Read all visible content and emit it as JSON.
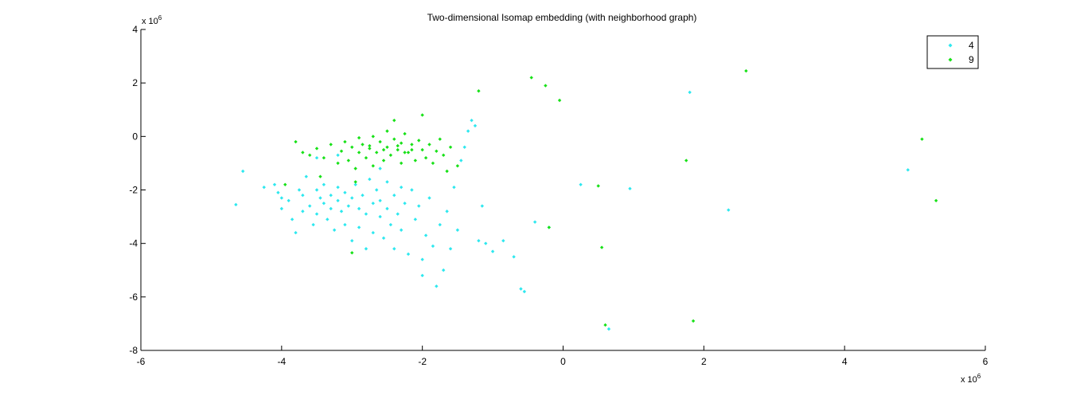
{
  "chart_data": {
    "type": "scatter",
    "title": "Two-dimensional Isomap embedding (with neighborhood graph)",
    "xlabel": "",
    "ylabel": "",
    "x_scale_label": "x 10",
    "x_scale_exponent": "6",
    "y_scale_label": "x 10",
    "y_scale_exponent": "6",
    "xlim": [
      -6,
      6
    ],
    "ylim": [
      -8,
      4
    ],
    "xticks": [
      -6,
      -4,
      -2,
      0,
      2,
      4,
      6
    ],
    "yticks": [
      -8,
      -6,
      -4,
      -2,
      0,
      2,
      4
    ],
    "grid": false,
    "legend_position": "top-right",
    "series": [
      {
        "name": "4",
        "color": "#2ee8ef",
        "points": [
          [
            -4.65,
            -2.55
          ],
          [
            -4.55,
            -1.3
          ],
          [
            -4.25,
            -1.9
          ],
          [
            -4.1,
            -1.8
          ],
          [
            -4.05,
            -2.1
          ],
          [
            -4.0,
            -2.3
          ],
          [
            -4.0,
            -2.7
          ],
          [
            -3.9,
            -2.4
          ],
          [
            -3.85,
            -3.1
          ],
          [
            -3.8,
            -3.6
          ],
          [
            -3.75,
            -2.0
          ],
          [
            -3.7,
            -2.8
          ],
          [
            -3.7,
            -2.2
          ],
          [
            -3.65,
            -1.5
          ],
          [
            -3.6,
            -2.6
          ],
          [
            -3.55,
            -3.3
          ],
          [
            -3.5,
            -2.0
          ],
          [
            -3.5,
            -2.9
          ],
          [
            -3.45,
            -2.3
          ],
          [
            -3.4,
            -1.8
          ],
          [
            -3.4,
            -2.5
          ],
          [
            -3.35,
            -3.1
          ],
          [
            -3.3,
            -2.2
          ],
          [
            -3.3,
            -2.7
          ],
          [
            -3.25,
            -3.5
          ],
          [
            -3.2,
            -2.4
          ],
          [
            -3.2,
            -1.9
          ],
          [
            -3.15,
            -2.8
          ],
          [
            -3.1,
            -2.1
          ],
          [
            -3.1,
            -3.3
          ],
          [
            -3.05,
            -2.6
          ],
          [
            -3.0,
            -2.3
          ],
          [
            -3.0,
            -3.9
          ],
          [
            -2.95,
            -1.8
          ],
          [
            -2.9,
            -2.7
          ],
          [
            -2.9,
            -3.4
          ],
          [
            -2.85,
            -2.2
          ],
          [
            -2.8,
            -2.9
          ],
          [
            -2.8,
            -4.2
          ],
          [
            -2.75,
            -1.6
          ],
          [
            -2.7,
            -2.5
          ],
          [
            -2.7,
            -3.6
          ],
          [
            -2.65,
            -2.0
          ],
          [
            -2.6,
            -3.0
          ],
          [
            -2.6,
            -2.4
          ],
          [
            -2.55,
            -3.8
          ],
          [
            -2.5,
            -2.7
          ],
          [
            -2.5,
            -1.7
          ],
          [
            -2.45,
            -3.3
          ],
          [
            -2.4,
            -2.2
          ],
          [
            -2.4,
            -4.2
          ],
          [
            -2.35,
            -2.9
          ],
          [
            -2.3,
            -1.9
          ],
          [
            -2.3,
            -3.5
          ],
          [
            -2.25,
            -2.5
          ],
          [
            -2.2,
            -4.4
          ],
          [
            -2.15,
            -2.0
          ],
          [
            -2.1,
            -3.1
          ],
          [
            -2.05,
            -2.6
          ],
          [
            -2.0,
            -4.6
          ],
          [
            -2.0,
            -5.2
          ],
          [
            -1.95,
            -3.7
          ],
          [
            -1.9,
            -2.3
          ],
          [
            -1.85,
            -4.1
          ],
          [
            -1.8,
            -5.6
          ],
          [
            -1.75,
            -3.3
          ],
          [
            -1.7,
            -5.0
          ],
          [
            -1.65,
            -2.8
          ],
          [
            -1.6,
            -4.2
          ],
          [
            -1.55,
            -1.9
          ],
          [
            -1.5,
            -3.5
          ],
          [
            -1.45,
            -0.9
          ],
          [
            -1.4,
            -0.4
          ],
          [
            -1.35,
            0.2
          ],
          [
            -1.3,
            0.6
          ],
          [
            -1.25,
            0.4
          ],
          [
            -1.2,
            -3.9
          ],
          [
            -1.15,
            -2.6
          ],
          [
            -1.1,
            -4.0
          ],
          [
            -1.0,
            -4.3
          ],
          [
            -0.85,
            -3.9
          ],
          [
            -0.7,
            -4.5
          ],
          [
            -0.6,
            -5.7
          ],
          [
            -0.55,
            -5.8
          ],
          [
            -0.4,
            -3.2
          ],
          [
            -0.2,
            -3.4
          ],
          [
            0.25,
            -1.8
          ],
          [
            0.65,
            -7.2
          ],
          [
            0.95,
            -1.95
          ],
          [
            1.8,
            1.65
          ],
          [
            2.35,
            -2.75
          ],
          [
            4.9,
            -1.25
          ],
          [
            -3.2,
            -0.7
          ],
          [
            -3.5,
            -0.8
          ],
          [
            -2.6,
            -1.2
          ]
        ]
      },
      {
        "name": "9",
        "color": "#18e118",
        "points": [
          [
            -3.95,
            -1.8
          ],
          [
            -3.8,
            -0.2
          ],
          [
            -3.7,
            -0.6
          ],
          [
            -3.6,
            -0.7
          ],
          [
            -3.5,
            -0.45
          ],
          [
            -3.4,
            -0.8
          ],
          [
            -3.3,
            -0.3
          ],
          [
            -3.2,
            -1.0
          ],
          [
            -3.15,
            -0.55
          ],
          [
            -3.1,
            -0.2
          ],
          [
            -3.05,
            -0.9
          ],
          [
            -3.0,
            -0.4
          ],
          [
            -3.0,
            -4.35
          ],
          [
            -2.95,
            -1.2
          ],
          [
            -2.9,
            -0.6
          ],
          [
            -2.9,
            -0.05
          ],
          [
            -2.85,
            -0.3
          ],
          [
            -2.8,
            -0.8
          ],
          [
            -2.75,
            -0.45
          ],
          [
            -2.7,
            0.0
          ],
          [
            -2.7,
            -1.1
          ],
          [
            -2.65,
            -0.6
          ],
          [
            -2.6,
            -0.2
          ],
          [
            -2.55,
            -0.9
          ],
          [
            -2.5,
            -0.4
          ],
          [
            -2.5,
            0.2
          ],
          [
            -2.45,
            -0.7
          ],
          [
            -2.4,
            -0.1
          ],
          [
            -2.4,
            0.6
          ],
          [
            -2.35,
            -0.5
          ],
          [
            -2.3,
            -1.0
          ],
          [
            -2.3,
            -0.25
          ],
          [
            -2.25,
            0.1
          ],
          [
            -2.2,
            -0.6
          ],
          [
            -2.15,
            -0.3
          ],
          [
            -2.1,
            -0.9
          ],
          [
            -2.05,
            -0.15
          ],
          [
            -2.0,
            -0.5
          ],
          [
            -2.0,
            0.8
          ],
          [
            -1.95,
            -0.8
          ],
          [
            -1.9,
            -0.3
          ],
          [
            -1.85,
            -1.0
          ],
          [
            -1.8,
            -0.55
          ],
          [
            -1.75,
            -0.1
          ],
          [
            -1.7,
            -0.7
          ],
          [
            -1.65,
            -1.3
          ],
          [
            -1.6,
            -0.4
          ],
          [
            -1.5,
            -1.1
          ],
          [
            -1.2,
            1.7
          ],
          [
            -0.45,
            2.2
          ],
          [
            -0.25,
            1.9
          ],
          [
            -0.05,
            1.35
          ],
          [
            -0.2,
            -3.4
          ],
          [
            0.5,
            -1.85
          ],
          [
            0.55,
            -4.15
          ],
          [
            0.6,
            -7.05
          ],
          [
            1.75,
            -0.9
          ],
          [
            1.85,
            -6.9
          ],
          [
            2.6,
            2.45
          ],
          [
            5.1,
            -0.1
          ],
          [
            5.3,
            -2.4
          ],
          [
            -3.45,
            -1.5
          ],
          [
            -2.95,
            -1.7
          ],
          [
            -2.75,
            -0.35
          ],
          [
            -2.55,
            -0.5
          ],
          [
            -2.35,
            -0.35
          ],
          [
            -2.25,
            -0.6
          ],
          [
            -2.15,
            -0.5
          ]
        ]
      }
    ]
  }
}
